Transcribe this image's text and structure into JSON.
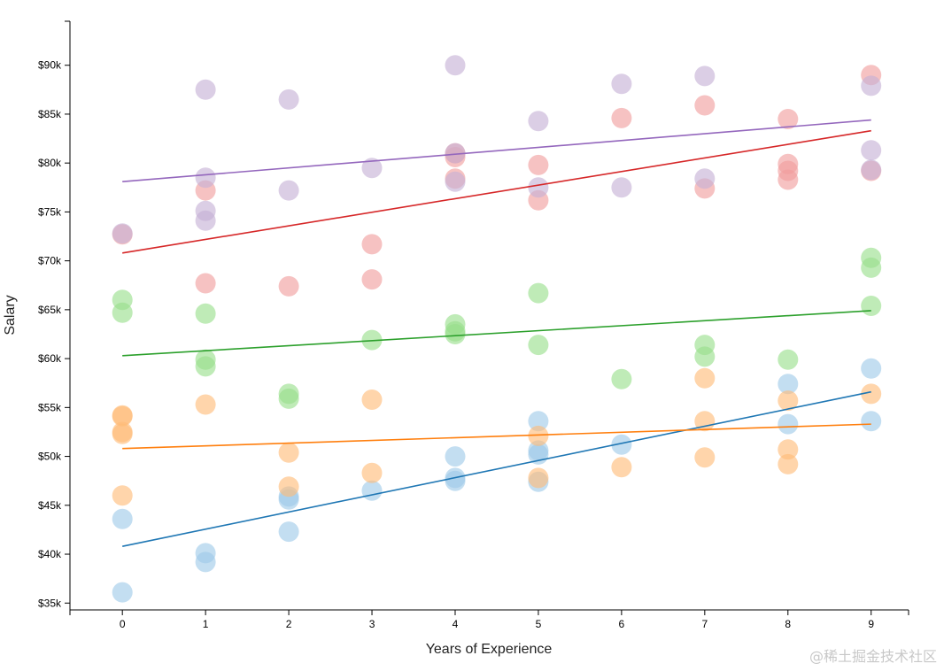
{
  "chart_data": {
    "type": "scatter",
    "title": "",
    "xlabel": "Years of Experience",
    "ylabel": "Salary",
    "xlim": [
      -0.63,
      9.45
    ],
    "ylim": [
      34300,
      94500
    ],
    "x_ticks": [
      0,
      1,
      2,
      3,
      4,
      5,
      6,
      7,
      8,
      9
    ],
    "y_ticks": [
      {
        "value": 35000,
        "label": "$35k"
      },
      {
        "value": 40000,
        "label": "$40k"
      },
      {
        "value": 45000,
        "label": "$45k"
      },
      {
        "value": 50000,
        "label": "$50k"
      },
      {
        "value": 55000,
        "label": "$55k"
      },
      {
        "value": 60000,
        "label": "$60k"
      },
      {
        "value": 65000,
        "label": "$65k"
      },
      {
        "value": 70000,
        "label": "$70k"
      },
      {
        "value": 75000,
        "label": "$75k"
      },
      {
        "value": 80000,
        "label": "$80k"
      },
      {
        "value": 85000,
        "label": "$85k"
      },
      {
        "value": 90000,
        "label": "$90k"
      }
    ],
    "series": [
      {
        "name": "blue",
        "color": "#1f77b4",
        "point_color": "#9ecae9",
        "trend": {
          "x0": 0,
          "y0": 40800,
          "x1": 9,
          "y1": 56600
        },
        "points": [
          [
            0,
            43600
          ],
          [
            0,
            36100
          ],
          [
            1,
            40100
          ],
          [
            1,
            39200
          ],
          [
            2,
            45900
          ],
          [
            2,
            45600
          ],
          [
            2,
            42300
          ],
          [
            3,
            46500
          ],
          [
            4,
            50000
          ],
          [
            4,
            47800
          ],
          [
            4,
            47500
          ],
          [
            5,
            53600
          ],
          [
            5,
            50600
          ],
          [
            5,
            50200
          ],
          [
            5,
            47400
          ],
          [
            6,
            51200
          ],
          [
            8,
            57400
          ],
          [
            8,
            53300
          ],
          [
            9,
            59000
          ],
          [
            9,
            53600
          ]
        ]
      },
      {
        "name": "orange",
        "color": "#ff7f0e",
        "point_color": "#ffbb78",
        "trend": {
          "x0": 0,
          "y0": 50800,
          "x1": 9,
          "y1": 53300
        },
        "points": [
          [
            0,
            54200
          ],
          [
            0,
            54100
          ],
          [
            0,
            52500
          ],
          [
            0,
            52300
          ],
          [
            0,
            46000
          ],
          [
            1,
            55300
          ],
          [
            2,
            50400
          ],
          [
            2,
            46900
          ],
          [
            3,
            55800
          ],
          [
            3,
            48300
          ],
          [
            5,
            52100
          ],
          [
            5,
            47800
          ],
          [
            6,
            48900
          ],
          [
            7,
            58000
          ],
          [
            7,
            53600
          ],
          [
            7,
            49900
          ],
          [
            8,
            55700
          ],
          [
            8,
            50700
          ],
          [
            8,
            49200
          ],
          [
            9,
            56400
          ]
        ]
      },
      {
        "name": "green",
        "color": "#2ca02c",
        "point_color": "#98df8a",
        "trend": {
          "x0": 0,
          "y0": 60300,
          "x1": 9,
          "y1": 64900
        },
        "points": [
          [
            0,
            66000
          ],
          [
            0,
            64700
          ],
          [
            1,
            64600
          ],
          [
            1,
            59900
          ],
          [
            1,
            59200
          ],
          [
            2,
            56400
          ],
          [
            2,
            55900
          ],
          [
            3,
            61900
          ],
          [
            4,
            63500
          ],
          [
            4,
            62800
          ],
          [
            4,
            62500
          ],
          [
            5,
            66700
          ],
          [
            5,
            61400
          ],
          [
            6,
            57900
          ],
          [
            7,
            61400
          ],
          [
            7,
            60200
          ],
          [
            8,
            59900
          ],
          [
            9,
            70300
          ],
          [
            9,
            69300
          ],
          [
            9,
            65400
          ]
        ]
      },
      {
        "name": "red",
        "color": "#d62728",
        "point_color": "#f09c9c",
        "trend": {
          "x0": 0,
          "y0": 70800,
          "x1": 9,
          "y1": 83300
        },
        "points": [
          [
            0,
            72700
          ],
          [
            1,
            77200
          ],
          [
            1,
            67700
          ],
          [
            2,
            67400
          ],
          [
            3,
            71700
          ],
          [
            3,
            68100
          ],
          [
            4,
            81000
          ],
          [
            4,
            80600
          ],
          [
            4,
            78400
          ],
          [
            5,
            79800
          ],
          [
            5,
            76200
          ],
          [
            6,
            84600
          ],
          [
            7,
            85900
          ],
          [
            7,
            77400
          ],
          [
            8,
            84500
          ],
          [
            8,
            79900
          ],
          [
            8,
            79200
          ],
          [
            8,
            78300
          ],
          [
            9,
            89000
          ],
          [
            9,
            79200
          ]
        ]
      },
      {
        "name": "purple",
        "color": "#9467bd",
        "point_color": "#c5b0d5",
        "trend": {
          "x0": 0,
          "y0": 78100,
          "x1": 9,
          "y1": 84400
        },
        "points": [
          [
            0,
            72800
          ],
          [
            1,
            87500
          ],
          [
            1,
            78500
          ],
          [
            1,
            75100
          ],
          [
            1,
            74100
          ],
          [
            2,
            86500
          ],
          [
            2,
            77200
          ],
          [
            3,
            79500
          ],
          [
            4,
            90000
          ],
          [
            4,
            81000
          ],
          [
            4,
            78100
          ],
          [
            5,
            84300
          ],
          [
            5,
            77500
          ],
          [
            6,
            88100
          ],
          [
            6,
            77500
          ],
          [
            7,
            88900
          ],
          [
            7,
            78400
          ],
          [
            9,
            87900
          ],
          [
            9,
            81300
          ],
          [
            9,
            79300
          ]
        ]
      }
    ]
  },
  "watermark": "@稀土掘金技术社区"
}
